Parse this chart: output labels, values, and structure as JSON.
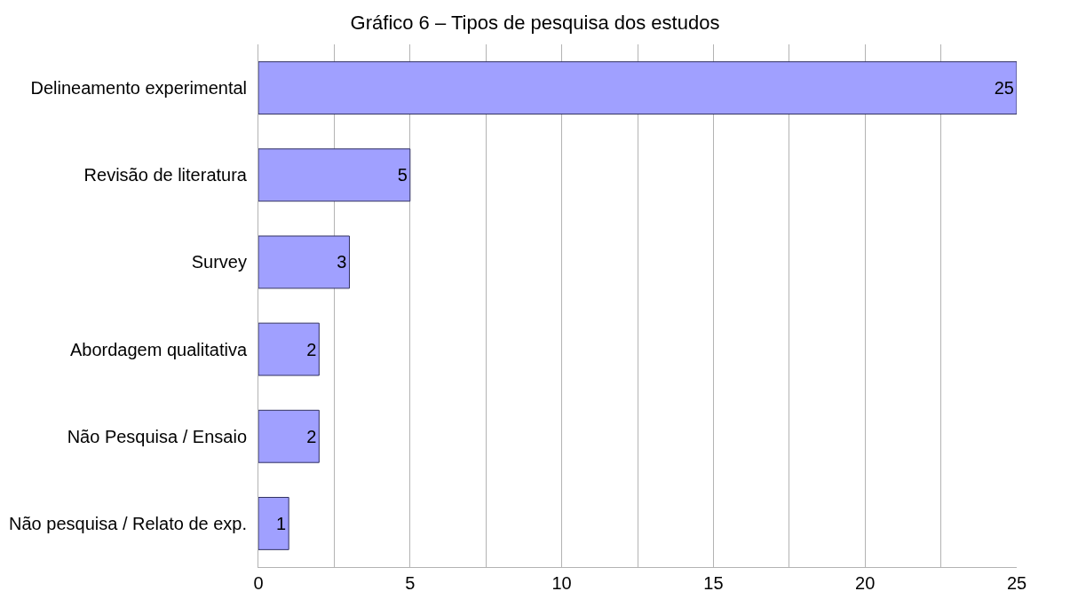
{
  "chart_data": {
    "type": "bar",
    "orientation": "horizontal",
    "title": "Gráfico 6 – Tipos de pesquisa dos estudos",
    "categories": [
      "Delineamento experimental",
      "Revisão de literatura",
      "Survey",
      "Abordagem qualitativa",
      "Não Pesquisa / Ensaio",
      "Não pesquisa / Relato de exp."
    ],
    "values": [
      25,
      5,
      3,
      2,
      2,
      1
    ],
    "color": "#a0a0ff",
    "data_labels": true,
    "xlim": [
      0,
      25
    ],
    "xticks": [
      0,
      {
        "value": 2.5,
        "label": null
      },
      5,
      {
        "value": 7.5,
        "label": null
      },
      10,
      {
        "value": 12.5,
        "label": null
      },
      15,
      {
        "value": 17.5,
        "label": null
      },
      20,
      {
        "value": 22.5,
        "label": null
      },
      25
    ],
    "grid": "x"
  }
}
